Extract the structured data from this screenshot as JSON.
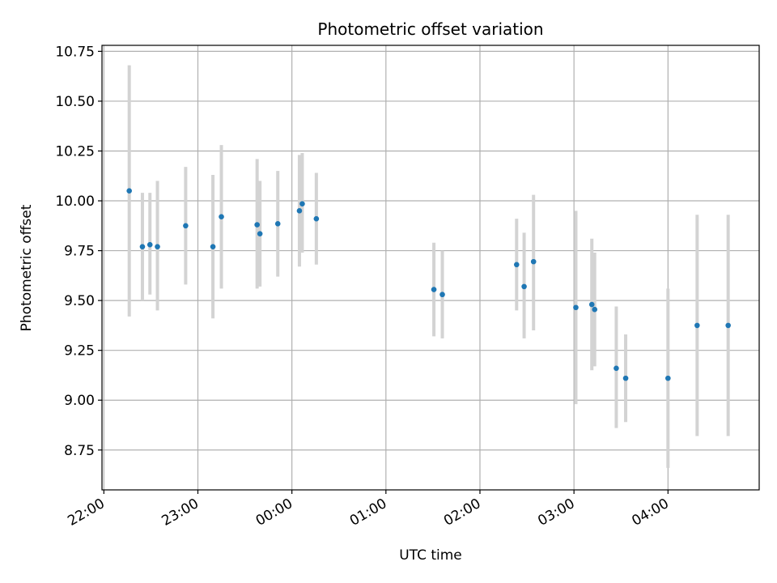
{
  "chart_data": {
    "type": "scatter",
    "title": "Photometric offset variation",
    "xlabel": "UTC time",
    "ylabel": "Photometric offset",
    "grid": true,
    "x_unit": "hours since 22:00 UTC",
    "xlim": [
      -0.02,
      6.97
    ],
    "ylim": [
      8.55,
      10.78
    ],
    "x_ticks": [
      {
        "value": 0,
        "label": "22:00"
      },
      {
        "value": 1,
        "label": "23:00"
      },
      {
        "value": 2,
        "label": "00:00"
      },
      {
        "value": 3,
        "label": "01:00"
      },
      {
        "value": 4,
        "label": "02:00"
      },
      {
        "value": 5,
        "label": "03:00"
      },
      {
        "value": 6,
        "label": "04:00"
      }
    ],
    "y_ticks": [
      {
        "value": 8.75,
        "label": "8.75"
      },
      {
        "value": 9.0,
        "label": "9.00"
      },
      {
        "value": 9.25,
        "label": "9.25"
      },
      {
        "value": 9.5,
        "label": "9.50"
      },
      {
        "value": 9.75,
        "label": "9.75"
      },
      {
        "value": 10.0,
        "label": "10.00"
      },
      {
        "value": 10.25,
        "label": "10.25"
      },
      {
        "value": 10.5,
        "label": "10.50"
      },
      {
        "value": 10.75,
        "label": "10.75"
      }
    ],
    "marker_color": "#1f77b4",
    "errorbar_color": "#d3d3d3",
    "points": [
      {
        "x": 0.27,
        "y": 10.05,
        "ylow": 9.42,
        "yhigh": 10.68
      },
      {
        "x": 0.41,
        "y": 9.77,
        "ylow": 9.5,
        "yhigh": 10.04
      },
      {
        "x": 0.49,
        "y": 9.78,
        "ylow": 9.53,
        "yhigh": 10.04
      },
      {
        "x": 0.57,
        "y": 9.77,
        "ylow": 9.45,
        "yhigh": 10.1
      },
      {
        "x": 0.87,
        "y": 9.875,
        "ylow": 9.58,
        "yhigh": 10.17
      },
      {
        "x": 1.16,
        "y": 9.77,
        "ylow": 9.41,
        "yhigh": 10.13
      },
      {
        "x": 1.25,
        "y": 9.92,
        "ylow": 9.56,
        "yhigh": 10.28
      },
      {
        "x": 1.63,
        "y": 9.88,
        "ylow": 9.56,
        "yhigh": 10.21
      },
      {
        "x": 1.66,
        "y": 9.835,
        "ylow": 9.57,
        "yhigh": 10.1
      },
      {
        "x": 1.85,
        "y": 9.885,
        "ylow": 9.62,
        "yhigh": 10.15
      },
      {
        "x": 2.08,
        "y": 9.95,
        "ylow": 9.67,
        "yhigh": 10.23
      },
      {
        "x": 2.11,
        "y": 9.985,
        "ylow": 9.74,
        "yhigh": 10.24
      },
      {
        "x": 2.26,
        "y": 9.91,
        "ylow": 9.68,
        "yhigh": 10.14
      },
      {
        "x": 3.51,
        "y": 9.555,
        "ylow": 9.32,
        "yhigh": 9.79
      },
      {
        "x": 3.6,
        "y": 9.53,
        "ylow": 9.31,
        "yhigh": 9.75
      },
      {
        "x": 4.39,
        "y": 9.68,
        "ylow": 9.45,
        "yhigh": 9.91
      },
      {
        "x": 4.47,
        "y": 9.57,
        "ylow": 9.31,
        "yhigh": 9.84
      },
      {
        "x": 4.57,
        "y": 9.695,
        "ylow": 9.35,
        "yhigh": 10.03
      },
      {
        "x": 5.02,
        "y": 9.465,
        "ylow": 8.98,
        "yhigh": 9.95
      },
      {
        "x": 5.19,
        "y": 9.48,
        "ylow": 9.15,
        "yhigh": 9.81
      },
      {
        "x": 5.22,
        "y": 9.455,
        "ylow": 9.17,
        "yhigh": 9.74
      },
      {
        "x": 5.45,
        "y": 9.16,
        "ylow": 8.86,
        "yhigh": 9.47
      },
      {
        "x": 5.55,
        "y": 9.11,
        "ylow": 8.89,
        "yhigh": 9.33
      },
      {
        "x": 6.0,
        "y": 9.11,
        "ylow": 8.66,
        "yhigh": 9.56
      },
      {
        "x": 6.31,
        "y": 9.375,
        "ylow": 8.82,
        "yhigh": 9.93
      },
      {
        "x": 6.64,
        "y": 9.375,
        "ylow": 8.82,
        "yhigh": 9.93
      }
    ]
  }
}
